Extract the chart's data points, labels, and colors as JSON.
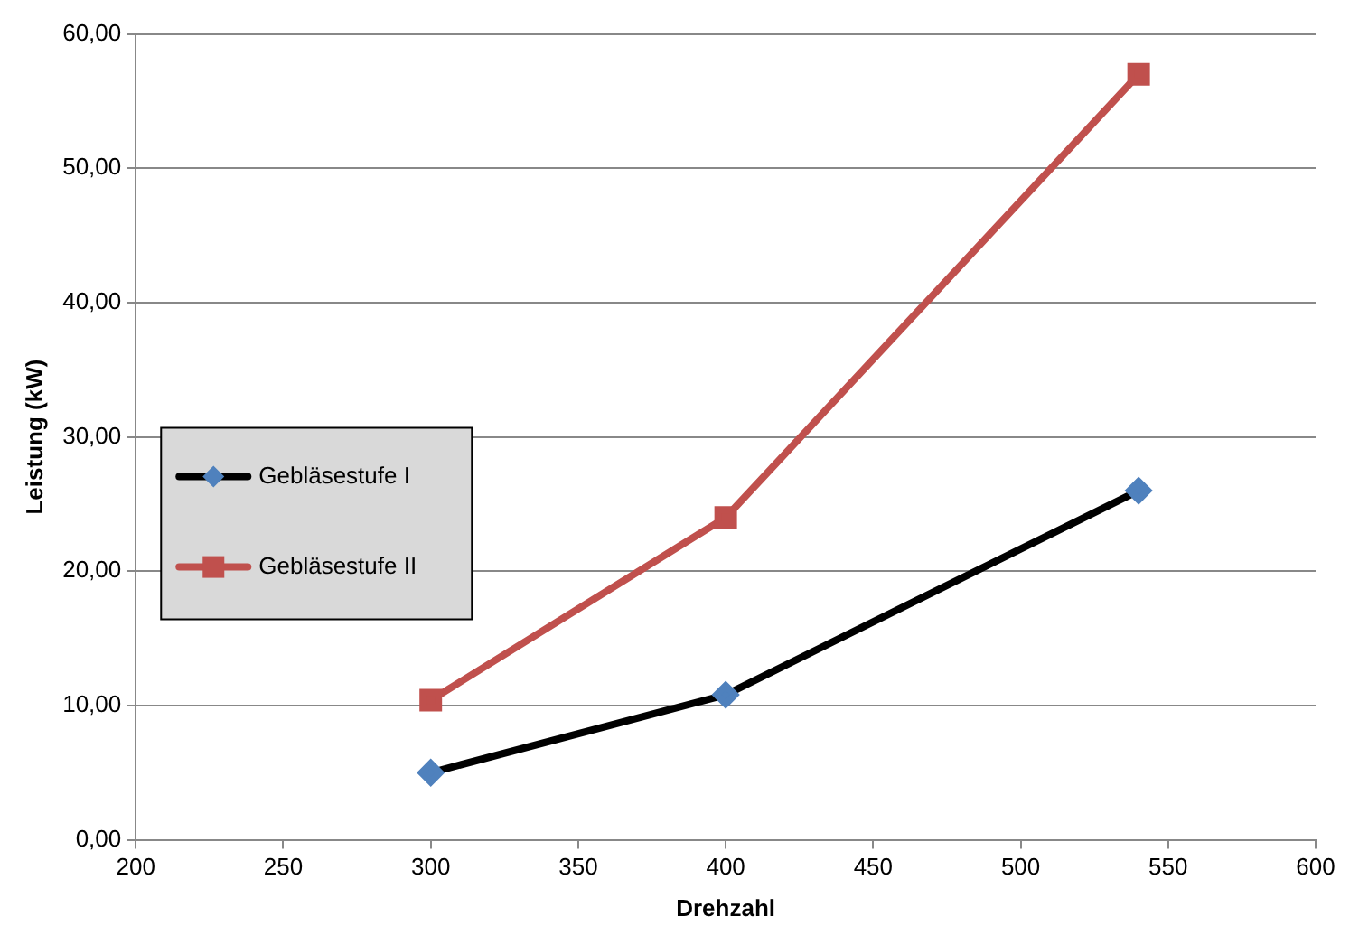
{
  "chart_data": {
    "type": "line",
    "xlabel": "Drehzahl",
    "ylabel": "Leistung (kW)",
    "series": [
      {
        "name": "Gebläsestufe I",
        "color": "#000000",
        "colors": [
          "#4f81bd",
          "#4f81bd",
          "#4f81bd"
        ],
        "marker": "diamond",
        "x": [
          300,
          400,
          540
        ],
        "values": [
          5,
          10.8,
          26
        ]
      },
      {
        "name": "Gebläsestufe II",
        "color": "#c0504d",
        "marker": "square",
        "x": [
          300,
          400,
          540
        ],
        "values": [
          10.4,
          24,
          57
        ]
      }
    ],
    "xlim": [
      200,
      600
    ],
    "xticks": [
      200,
      250,
      300,
      350,
      400,
      450,
      500,
      550,
      600
    ],
    "ylim": [
      0,
      60
    ],
    "yticks": [
      {
        "value": 0,
        "label": "0,00"
      },
      {
        "value": 10,
        "label": "10,00"
      },
      {
        "value": 20,
        "label": "20,00"
      },
      {
        "value": 30,
        "label": "30,00"
      },
      {
        "value": 40,
        "label": "40,00"
      },
      {
        "value": 50,
        "label": "50,00"
      },
      {
        "value": 60,
        "label": "60,00"
      }
    ],
    "grid": "y",
    "legend": "left"
  }
}
